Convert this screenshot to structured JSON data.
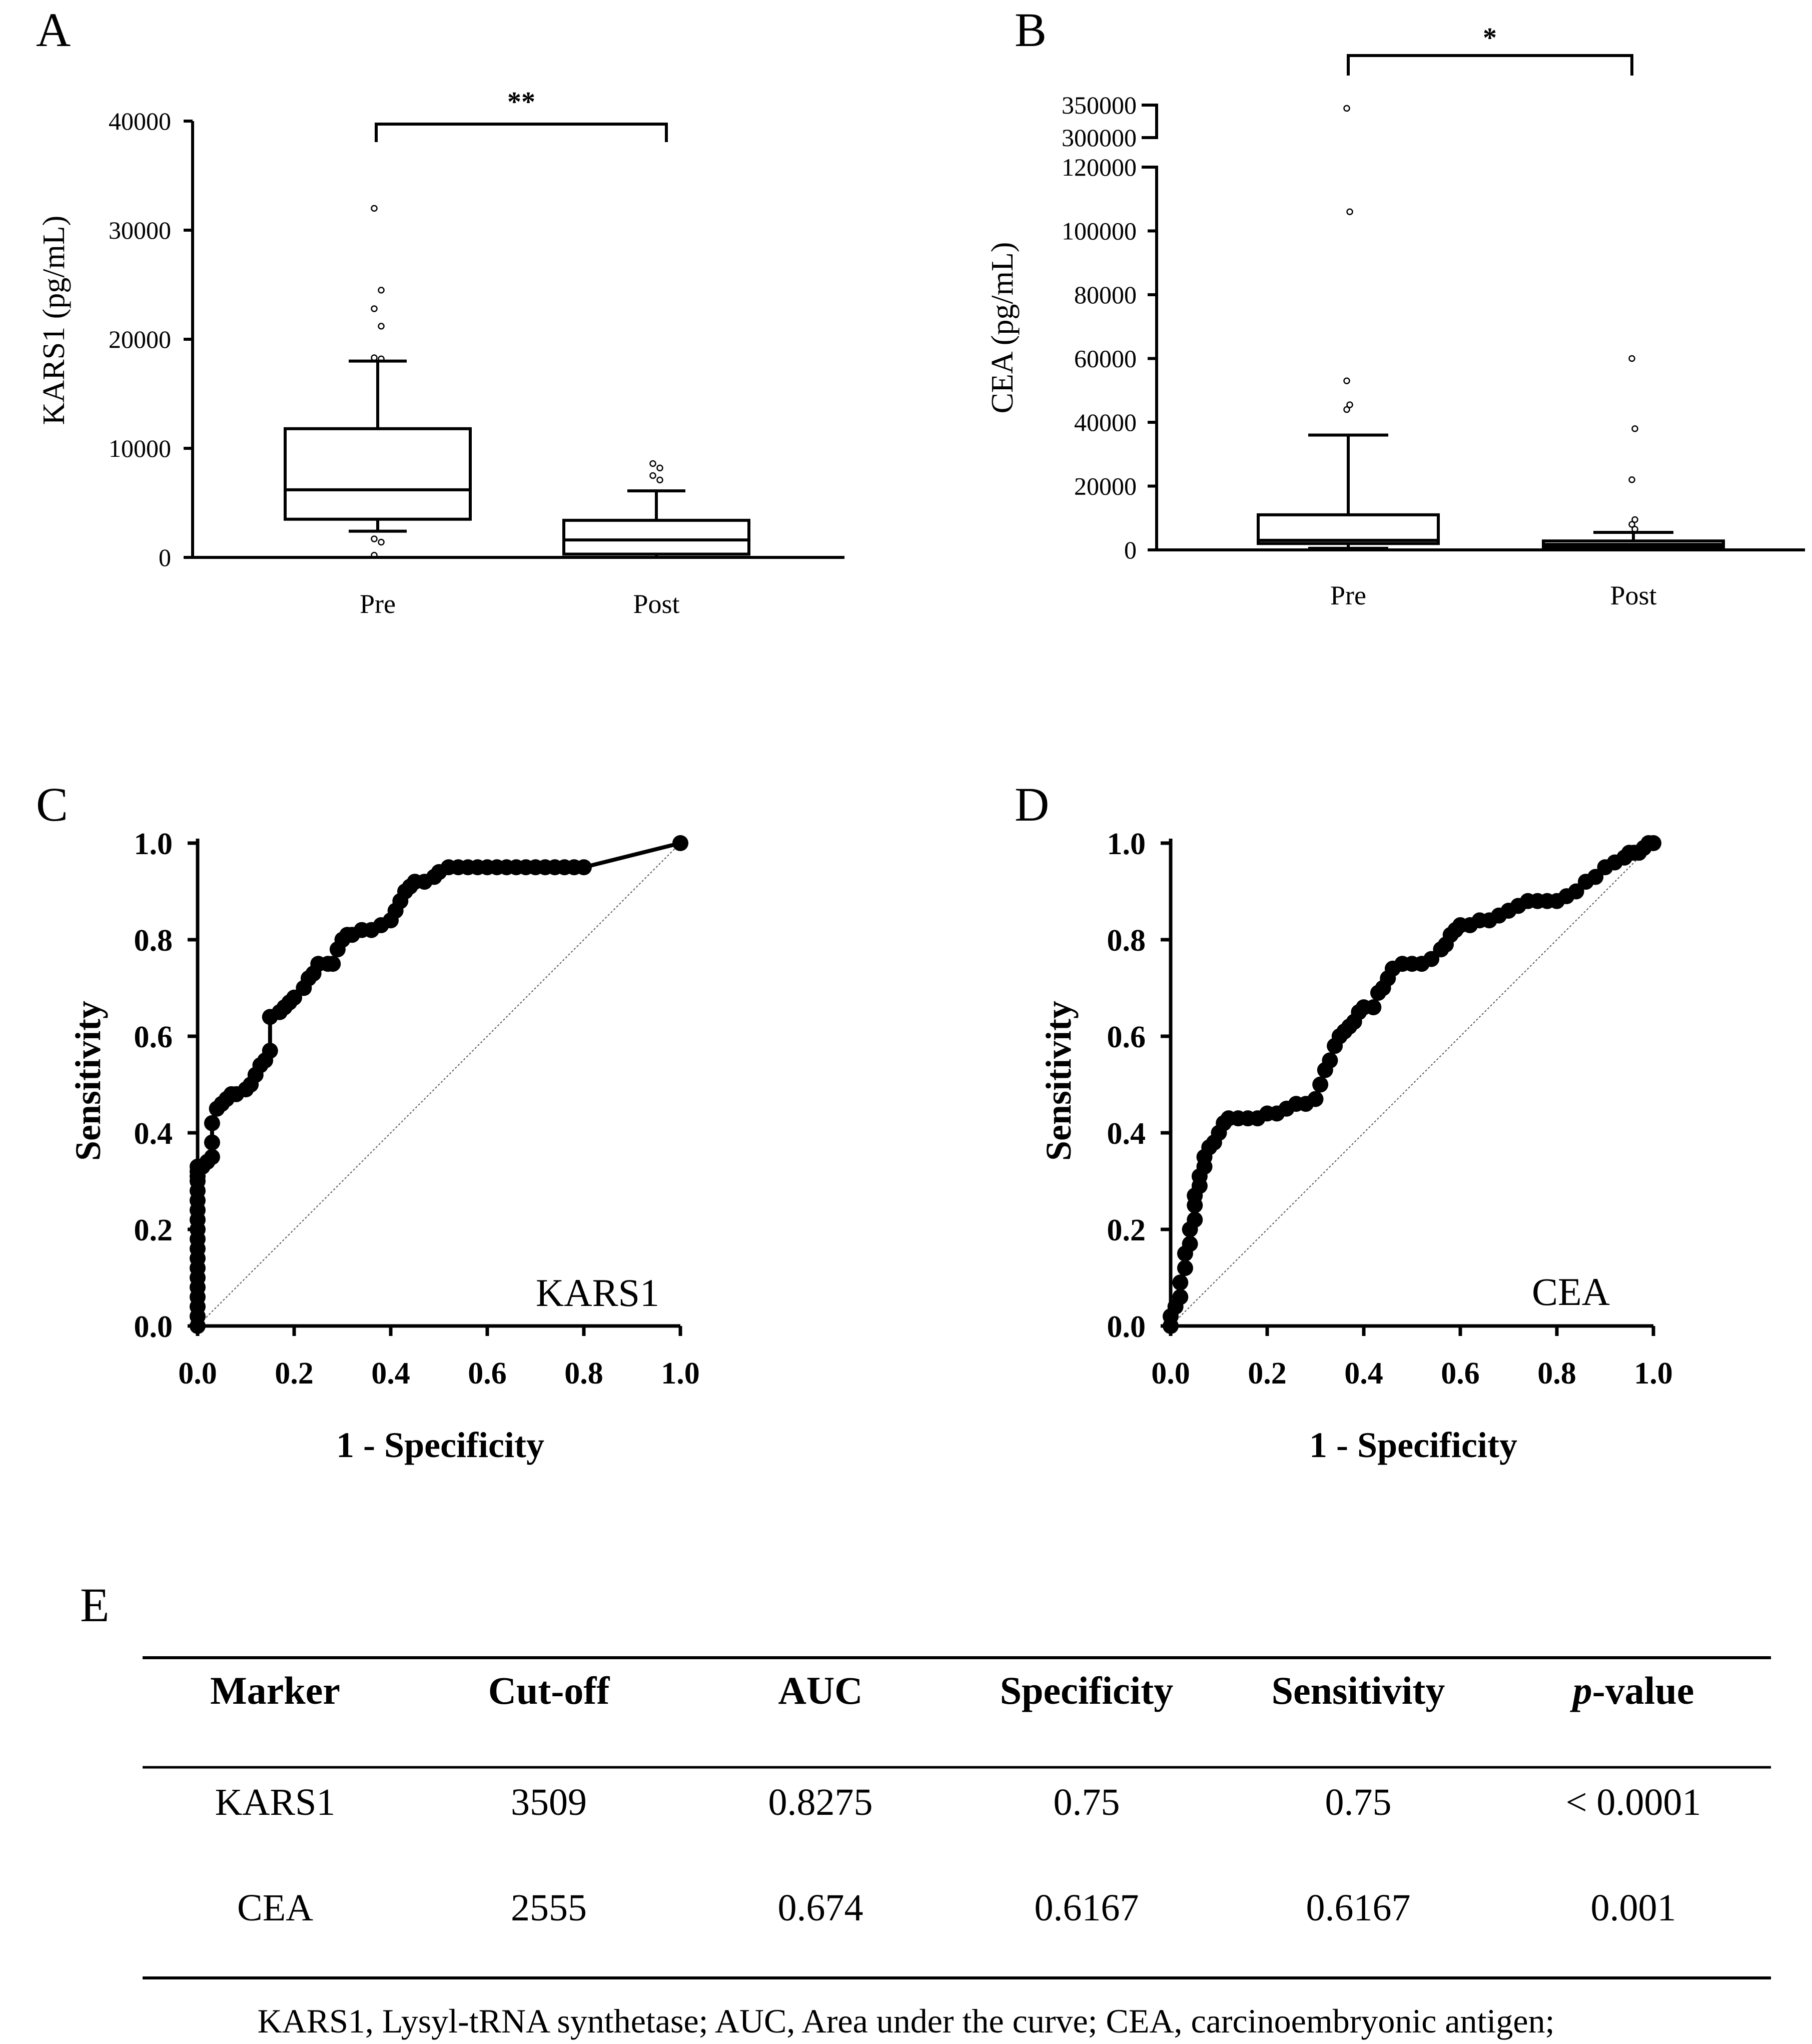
{
  "panels": {
    "A": {
      "label": "A"
    },
    "B": {
      "label": "B"
    },
    "C": {
      "label": "C"
    },
    "D": {
      "label": "D"
    },
    "E": {
      "label": "E"
    }
  },
  "chart_data": [
    {
      "panel": "A",
      "type": "box",
      "ylabel": "KARS1 (pg/mL)",
      "ylim": [
        0,
        40000
      ],
      "yticks": [
        "0",
        "10000",
        "20000",
        "30000",
        "40000"
      ],
      "categories": [
        "Pre",
        "Post"
      ],
      "significance": "**",
      "boxes": [
        {
          "name": "Pre",
          "whisker_low": 2400,
          "q1": 3500,
          "median": 6200,
          "q3": 11800,
          "whisker_high": 18000,
          "outliers": [
            32000,
            24500,
            22800,
            21200,
            18300,
            18200,
            1700,
            1400,
            200
          ]
        },
        {
          "name": "Post",
          "whisker_low": 0,
          "q1": 300,
          "median": 1600,
          "q3": 3400,
          "whisker_high": 6100,
          "outliers": [
            8600,
            8200,
            7500,
            7100
          ]
        }
      ]
    },
    {
      "panel": "B",
      "type": "box",
      "ylabel": "CEA (pg/mL)",
      "ylim": [
        0,
        350000
      ],
      "axis_break": [
        120000,
        300000
      ],
      "yticks": [
        "0",
        "20000",
        "40000",
        "60000",
        "80000",
        "100000",
        "120000",
        "300000",
        "350000"
      ],
      "categories": [
        "Pre",
        "Post"
      ],
      "significance": "*",
      "boxes": [
        {
          "name": "Pre",
          "whisker_low": 500,
          "q1": 2000,
          "median": 3000,
          "q3": 11000,
          "whisker_high": 36000,
          "outliers": [
            345000,
            106000,
            53000,
            45500,
            44000
          ]
        },
        {
          "name": "Post",
          "whisker_low": 200,
          "q1": 900,
          "median": 1700,
          "q3": 2800,
          "whisker_high": 5500,
          "outliers": [
            60000,
            38000,
            22000,
            9500,
            8000,
            6500
          ]
        }
      ]
    },
    {
      "panel": "C",
      "type": "line",
      "ylabel": "Sensitivity",
      "xlabel": "1 - Specificity",
      "annotation": "KARS1",
      "xlim": [
        0,
        1
      ],
      "ylim": [
        0,
        1
      ],
      "xticks": [
        "0.0",
        "0.2",
        "0.4",
        "0.6",
        "0.8",
        "1.0"
      ],
      "yticks": [
        "0.0",
        "0.2",
        "0.4",
        "0.6",
        "0.8",
        "1.0"
      ],
      "x": [
        0.0,
        0.0,
        0.0,
        0.0,
        0.0,
        0.0,
        0.0,
        0.0,
        0.0,
        0.0,
        0.0,
        0.0,
        0.0,
        0.0,
        0.0,
        0.0,
        0.0,
        0.0,
        0.0,
        0.01,
        0.02,
        0.03,
        0.03,
        0.03,
        0.04,
        0.05,
        0.06,
        0.07,
        0.08,
        0.1,
        0.11,
        0.12,
        0.13,
        0.14,
        0.15,
        0.15,
        0.17,
        0.18,
        0.19,
        0.2,
        0.22,
        0.23,
        0.24,
        0.25,
        0.27,
        0.28,
        0.29,
        0.3,
        0.31,
        0.32,
        0.34,
        0.36,
        0.38,
        0.4,
        0.41,
        0.42,
        0.43,
        0.44,
        0.45,
        0.47,
        0.49,
        0.5,
        0.52,
        0.54,
        0.56,
        0.58,
        0.6,
        0.62,
        0.64,
        0.66,
        0.68,
        0.7,
        0.72,
        0.74,
        0.76,
        0.78,
        0.8,
        1.0
      ],
      "y": [
        0.0,
        0.02,
        0.04,
        0.06,
        0.08,
        0.1,
        0.12,
        0.14,
        0.16,
        0.18,
        0.2,
        0.22,
        0.24,
        0.26,
        0.28,
        0.3,
        0.31,
        0.32,
        0.33,
        0.33,
        0.34,
        0.35,
        0.38,
        0.42,
        0.45,
        0.46,
        0.47,
        0.48,
        0.48,
        0.49,
        0.5,
        0.52,
        0.54,
        0.55,
        0.57,
        0.64,
        0.65,
        0.66,
        0.67,
        0.68,
        0.7,
        0.72,
        0.73,
        0.75,
        0.75,
        0.75,
        0.78,
        0.8,
        0.81,
        0.81,
        0.82,
        0.82,
        0.83,
        0.84,
        0.86,
        0.88,
        0.9,
        0.91,
        0.92,
        0.92,
        0.93,
        0.94,
        0.95,
        0.95,
        0.95,
        0.95,
        0.95,
        0.95,
        0.95,
        0.95,
        0.95,
        0.95,
        0.95,
        0.95,
        0.95,
        0.95,
        0.95,
        1.0
      ]
    },
    {
      "panel": "D",
      "type": "line",
      "ylabel": "Sensitivity",
      "xlabel": "1 - Specificity",
      "annotation": "CEA",
      "xlim": [
        0,
        1
      ],
      "ylim": [
        0,
        1
      ],
      "xticks": [
        "0.0",
        "0.2",
        "0.4",
        "0.6",
        "0.8",
        "1.0"
      ],
      "yticks": [
        "0.0",
        "0.2",
        "0.4",
        "0.6",
        "0.8",
        "1.0"
      ],
      "x": [
        0.0,
        0.0,
        0.01,
        0.02,
        0.02,
        0.03,
        0.03,
        0.04,
        0.04,
        0.05,
        0.05,
        0.05,
        0.06,
        0.06,
        0.07,
        0.07,
        0.08,
        0.09,
        0.1,
        0.11,
        0.12,
        0.14,
        0.16,
        0.18,
        0.2,
        0.22,
        0.24,
        0.26,
        0.28,
        0.3,
        0.31,
        0.32,
        0.33,
        0.34,
        0.35,
        0.36,
        0.37,
        0.38,
        0.39,
        0.4,
        0.42,
        0.43,
        0.44,
        0.45,
        0.46,
        0.48,
        0.5,
        0.52,
        0.54,
        0.56,
        0.57,
        0.58,
        0.59,
        0.6,
        0.62,
        0.64,
        0.66,
        0.68,
        0.7,
        0.72,
        0.74,
        0.76,
        0.78,
        0.8,
        0.82,
        0.84,
        0.86,
        0.88,
        0.9,
        0.92,
        0.94,
        0.95,
        0.96,
        0.97,
        0.98,
        0.99,
        1.0
      ],
      "y": [
        0.0,
        0.02,
        0.04,
        0.06,
        0.09,
        0.12,
        0.15,
        0.17,
        0.2,
        0.22,
        0.25,
        0.27,
        0.29,
        0.31,
        0.33,
        0.35,
        0.37,
        0.38,
        0.4,
        0.42,
        0.43,
        0.43,
        0.43,
        0.43,
        0.44,
        0.44,
        0.45,
        0.46,
        0.46,
        0.47,
        0.5,
        0.53,
        0.55,
        0.58,
        0.6,
        0.61,
        0.62,
        0.63,
        0.65,
        0.66,
        0.66,
        0.69,
        0.7,
        0.72,
        0.74,
        0.75,
        0.75,
        0.75,
        0.76,
        0.78,
        0.79,
        0.81,
        0.82,
        0.83,
        0.83,
        0.84,
        0.84,
        0.85,
        0.86,
        0.87,
        0.88,
        0.88,
        0.88,
        0.88,
        0.89,
        0.9,
        0.92,
        0.93,
        0.95,
        0.96,
        0.97,
        0.98,
        0.98,
        0.98,
        0.99,
        1.0,
        1.0
      ]
    },
    {
      "panel": "E",
      "type": "table",
      "columns": [
        "Marker",
        "Cut-off",
        "AUC",
        "Specificity",
        "Sensitivity",
        "p-value"
      ],
      "rows": [
        [
          "KARS1",
          "3509",
          "0.8275",
          "0.75",
          "0.75",
          "< 0.0001"
        ],
        [
          "CEA",
          "2555",
          "0.674",
          "0.6167",
          "0.6167",
          "0.001"
        ]
      ],
      "footnote": "KARS1, Lysyl-tRNA synthetase; AUC, Area under the curve; CEA, carcinoembryonic antigen;"
    }
  ]
}
